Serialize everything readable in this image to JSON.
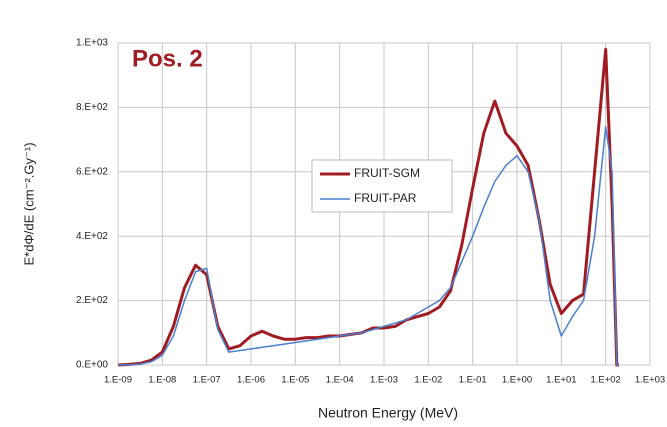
{
  "chart_data": {
    "type": "line",
    "annotation": "Pos. 2",
    "xlabel": "Neutron Energy (MeV)",
    "ylabel": "E*dΦ/dE  (cm⁻².Gy⁻¹)",
    "x": [
      1e-09,
      1.78e-09,
      3.16e-09,
      5.62e-09,
      1e-08,
      1.78e-08,
      3.16e-08,
      5.62e-08,
      1e-07,
      1.78e-07,
      3.16e-07,
      5.62e-07,
      1e-06,
      1.78e-06,
      3.16e-06,
      5.62e-06,
      1e-05,
      1.78e-05,
      3.16e-05,
      5.62e-05,
      0.0001,
      0.000178,
      0.000316,
      0.000562,
      0.001,
      0.00178,
      0.00316,
      0.00562,
      0.01,
      0.0178,
      0.0316,
      0.0562,
      0.1,
      0.178,
      0.316,
      0.562,
      1,
      1.78,
      3.16,
      5.62,
      10,
      17.8,
      31.6,
      56.2,
      100,
      140,
      178,
      200
    ],
    "series": [
      {
        "name": "FRUIT-SGM",
        "color": "#a01c22",
        "width": 3,
        "values": [
          0,
          2,
          5,
          15,
          40,
          120,
          240,
          310,
          280,
          120,
          50,
          60,
          90,
          105,
          90,
          80,
          80,
          85,
          85,
          90,
          90,
          95,
          100,
          115,
          115,
          120,
          140,
          150,
          160,
          180,
          230,
          370,
          550,
          720,
          820,
          720,
          680,
          620,
          450,
          250,
          160,
          200,
          220,
          600,
          980,
          500,
          0,
          0
        ]
      },
      {
        "name": "FRUIT-PAR",
        "color": "#4a7fd0",
        "width": 1.5,
        "values": [
          0,
          1,
          3,
          10,
          30,
          90,
          200,
          290,
          300,
          110,
          40,
          45,
          50,
          55,
          60,
          65,
          70,
          75,
          80,
          85,
          90,
          95,
          100,
          110,
          120,
          130,
          140,
          160,
          180,
          200,
          240,
          320,
          400,
          490,
          570,
          620,
          650,
          600,
          450,
          200,
          90,
          150,
          200,
          400,
          740,
          600,
          0,
          0
        ]
      }
    ],
    "xlim": [
      1e-09,
      1000
    ],
    "ylim": [
      0,
      1000
    ],
    "xscale": "log",
    "xticks": [
      {
        "value": 1e-09,
        "label": "1.E-09"
      },
      {
        "value": 1e-08,
        "label": "1.E-08"
      },
      {
        "value": 1e-07,
        "label": "1.E-07"
      },
      {
        "value": 1e-06,
        "label": "1.E-06"
      },
      {
        "value": 1e-05,
        "label": "1.E-05"
      },
      {
        "value": 0.0001,
        "label": "1.E-04"
      },
      {
        "value": 0.001,
        "label": "1.E-03"
      },
      {
        "value": 0.01,
        "label": "1.E-02"
      },
      {
        "value": 0.1,
        "label": "1.E-01"
      },
      {
        "value": 1,
        "label": "1.E+00"
      },
      {
        "value": 10,
        "label": "1.E+01"
      },
      {
        "value": 100,
        "label": "1.E+02"
      },
      {
        "value": 1000,
        "label": "1.E+03"
      }
    ],
    "yticks": [
      {
        "value": 0,
        "label": "0.E+00"
      },
      {
        "value": 200,
        "label": "2.E+02"
      },
      {
        "value": 400,
        "label": "4.E+02"
      },
      {
        "value": 600,
        "label": "6.E+02"
      },
      {
        "value": 800,
        "label": "8.E+02"
      },
      {
        "value": 1000,
        "label": "1.E+03"
      }
    ],
    "grid": true,
    "legend": "center",
    "annotation_color": "#a01c22"
  }
}
